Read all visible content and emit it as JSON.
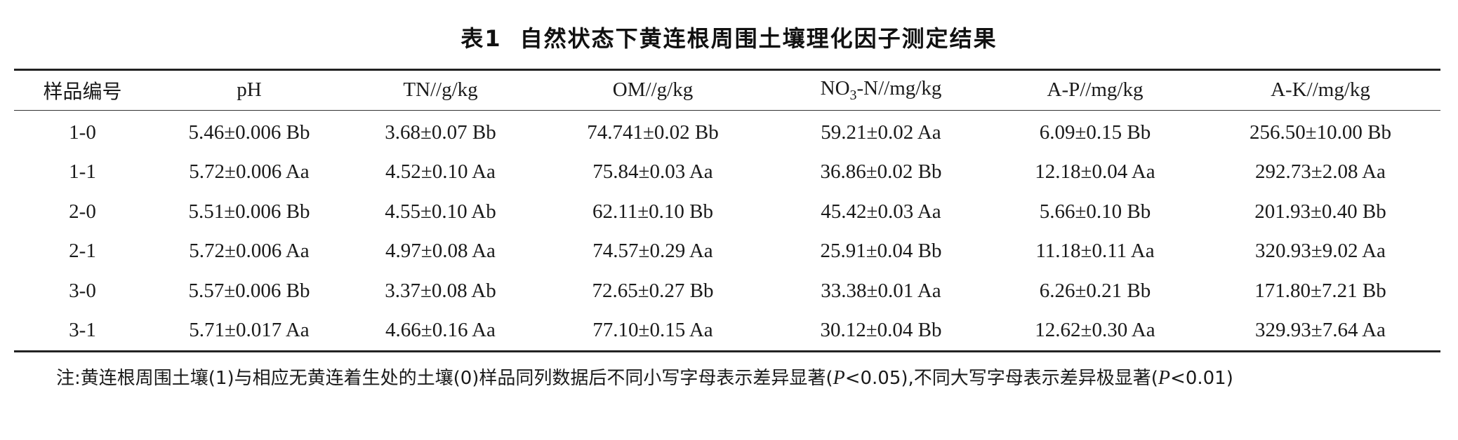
{
  "table": {
    "number": "表1",
    "title": "自然状态下黄连根周围土壤理化因子测定结果",
    "columns": [
      "样品编号",
      "pH",
      "TN//g/kg",
      "OM//g/kg",
      "NO3-N//mg/kg",
      "A-P//mg/kg",
      "A-K//mg/kg"
    ],
    "column_parts": {
      "no3_main": "NO",
      "no3_sub": "3",
      "no3_rest": "-N//mg/kg"
    },
    "rows": [
      [
        "1-0",
        "5.46±0.006 Bb",
        "3.68±0.07 Bb",
        "74.741±0.02 Bb",
        "59.21±0.02 Aa",
        "6.09±0.15 Bb",
        "256.50±10.00 Bb"
      ],
      [
        "1-1",
        "5.72±0.006 Aa",
        "4.52±0.10 Aa",
        "75.84±0.03 Aa",
        "36.86±0.02 Bb",
        "12.18±0.04 Aa",
        "292.73±2.08 Aa"
      ],
      [
        "2-0",
        "5.51±0.006 Bb",
        "4.55±0.10 Ab",
        "62.11±0.10 Bb",
        "45.42±0.03 Aa",
        "5.66±0.10 Bb",
        "201.93±0.40 Bb"
      ],
      [
        "2-1",
        "5.72±0.006 Aa",
        "4.97±0.08 Aa",
        "74.57±0.29 Aa",
        "25.91±0.04 Bb",
        "11.18±0.11 Aa",
        "320.93±9.02 Aa"
      ],
      [
        "3-0",
        "5.57±0.006 Bb",
        "3.37±0.08 Ab",
        "72.65±0.27 Bb",
        "33.38±0.01 Aa",
        "6.26±0.21 Bb",
        "171.80±7.21 Bb"
      ],
      [
        "3-1",
        "5.71±0.017 Aa",
        "4.66±0.16 Aa",
        "77.10±0.15 Aa",
        "30.12±0.04 Bb",
        "12.62±0.30 Aa",
        "329.93±7.64 Aa"
      ]
    ]
  },
  "note": {
    "part1": "注:黄连根周围土壤(1)与相应无黄连着生处的土壤(0)样品同列数据后不同小写字母表示差异显著(",
    "p1": "P",
    "part2": "<0.05),不同大写字母表示差异极显著(",
    "p2": "P",
    "part3": "<0.01)"
  }
}
